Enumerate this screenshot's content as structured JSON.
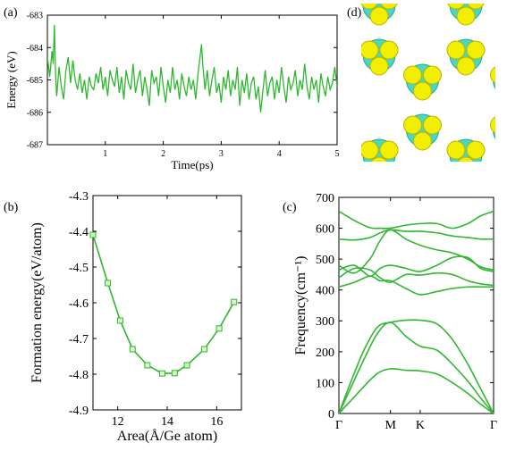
{
  "colors": {
    "line": "#2fb82f",
    "marker_fill": "#d9f7c5",
    "axis": "#000000",
    "iso_yellow": "#f2ee00",
    "iso_cyan": "#49d8c6"
  },
  "panel_labels": {
    "a": "(a)",
    "b": "(b)",
    "c": "(c)",
    "d": "(d)"
  },
  "chart_data": [
    {
      "id": "a",
      "type": "line",
      "xlabel": "Time(ps)",
      "ylabel": "Energy (eV)",
      "xlim": [
        0,
        5
      ],
      "ylim": [
        -687,
        -683
      ],
      "xticks": [
        1,
        2,
        3,
        4,
        5
      ],
      "yticks": [
        -683,
        -684,
        -685,
        -686,
        -687
      ],
      "grid": false,
      "series": [
        {
          "x": [
            0.0,
            0.04,
            0.08,
            0.1,
            0.12,
            0.14,
            0.16,
            0.2,
            0.24,
            0.28,
            0.32,
            0.36,
            0.4,
            0.44,
            0.48,
            0.52,
            0.56,
            0.6,
            0.64,
            0.68,
            0.72,
            0.76,
            0.8,
            0.84,
            0.88,
            0.92,
            0.96,
            1.0,
            1.04,
            1.08,
            1.12,
            1.16,
            1.2,
            1.24,
            1.28,
            1.32,
            1.36,
            1.4,
            1.44,
            1.48,
            1.52,
            1.56,
            1.6,
            1.64,
            1.68,
            1.72,
            1.76,
            1.8,
            1.84,
            1.88,
            1.92,
            1.96,
            2.0,
            2.04,
            2.08,
            2.12,
            2.16,
            2.2,
            2.24,
            2.28,
            2.32,
            2.36,
            2.4,
            2.44,
            2.48,
            2.52,
            2.56,
            2.6,
            2.64,
            2.66,
            2.68,
            2.72,
            2.76,
            2.8,
            2.84,
            2.88,
            2.92,
            2.96,
            3.0,
            3.04,
            3.08,
            3.12,
            3.16,
            3.2,
            3.24,
            3.28,
            3.32,
            3.36,
            3.4,
            3.44,
            3.48,
            3.52,
            3.56,
            3.6,
            3.64,
            3.68,
            3.72,
            3.76,
            3.8,
            3.84,
            3.88,
            3.92,
            3.96,
            4.0,
            4.04,
            4.08,
            4.12,
            4.16,
            4.2,
            4.24,
            4.28,
            4.32,
            4.36,
            4.4,
            4.44,
            4.48,
            4.52,
            4.56,
            4.6,
            4.64,
            4.68,
            4.72,
            4.76,
            4.8,
            4.84,
            4.88,
            4.92,
            4.96,
            5.0
          ],
          "y": [
            -684.3,
            -684.9,
            -684.1,
            -684.5,
            -683.3,
            -684.8,
            -685.5,
            -684.6,
            -685.2,
            -685.6,
            -684.7,
            -684.3,
            -685.1,
            -684.4,
            -685.0,
            -685.3,
            -684.8,
            -685.4,
            -685.0,
            -685.6,
            -684.9,
            -685.2,
            -685.3,
            -684.8,
            -685.1,
            -684.6,
            -685.3,
            -684.9,
            -685.5,
            -684.7,
            -685.0,
            -685.2,
            -684.6,
            -685.4,
            -684.9,
            -685.6,
            -684.7,
            -685.1,
            -685.3,
            -684.5,
            -685.4,
            -685.0,
            -684.7,
            -685.5,
            -684.9,
            -685.3,
            -685.8,
            -684.7,
            -685.1,
            -684.9,
            -685.5,
            -684.6,
            -685.2,
            -685.7,
            -685.0,
            -685.4,
            -684.6,
            -685.3,
            -685.0,
            -685.6,
            -684.8,
            -685.2,
            -685.5,
            -684.9,
            -685.3,
            -685.0,
            -685.6,
            -684.8,
            -684.2,
            -683.9,
            -684.5,
            -685.3,
            -684.7,
            -685.5,
            -685.0,
            -684.6,
            -685.4,
            -685.1,
            -685.7,
            -684.9,
            -685.3,
            -684.7,
            -685.5,
            -685.0,
            -685.3,
            -684.6,
            -685.8,
            -685.0,
            -685.4,
            -684.8,
            -685.6,
            -685.1,
            -684.9,
            -685.6,
            -685.2,
            -686.0,
            -685.3,
            -684.7,
            -685.5,
            -685.1,
            -684.9,
            -685.6,
            -685.0,
            -685.4,
            -684.6,
            -685.2,
            -685.7,
            -684.9,
            -685.3,
            -685.1,
            -684.7,
            -685.5,
            -685.0,
            -685.3,
            -684.5,
            -685.2,
            -685.6,
            -684.9,
            -685.3,
            -685.0,
            -685.7,
            -684.8,
            -685.2,
            -685.5,
            -684.9,
            -685.3,
            -685.1,
            -684.6,
            -685.2
          ]
        }
      ]
    },
    {
      "id": "b",
      "type": "line",
      "xlabel": "Area(Å/Ge atom)",
      "ylabel": "Formation energy(eV/atom)",
      "xlim": [
        11.0,
        17.0
      ],
      "ylim": [
        -4.9,
        -4.3
      ],
      "xticks": [
        12,
        14,
        16
      ],
      "yticks": [
        -4.3,
        -4.4,
        -4.5,
        -4.6,
        -4.7,
        -4.8,
        -4.9
      ],
      "grid": false,
      "series": [
        {
          "x": [
            11.0,
            11.6,
            12.1,
            12.6,
            13.2,
            13.8,
            14.3,
            14.8,
            15.5,
            16.1,
            16.7
          ],
          "y": [
            -4.41,
            -4.545,
            -4.65,
            -4.73,
            -4.775,
            -4.798,
            -4.797,
            -4.775,
            -4.73,
            -4.672,
            -4.598
          ]
        }
      ]
    },
    {
      "id": "c",
      "type": "line",
      "xlabel": "",
      "ylabel": "Frequency(cm⁻¹)",
      "xlim": [
        0,
        3
      ],
      "ylim": [
        0,
        700
      ],
      "xtick_positions": [
        0,
        1,
        1.577,
        3
      ],
      "xtick_labels": [
        "Γ",
        "M",
        "K",
        "Γ"
      ],
      "yticks": [
        0,
        100,
        200,
        300,
        400,
        500,
        600,
        700
      ],
      "grid": false,
      "series": [
        {
          "x": [
            0,
            0.25,
            0.5,
            0.75,
            1.0,
            1.3,
            1.577,
            1.9,
            2.2,
            2.5,
            2.75,
            3.0
          ],
          "y": [
            0,
            45,
            90,
            130,
            145,
            140,
            138,
            128,
            100,
            65,
            30,
            0
          ]
        },
        {
          "x": [
            0,
            0.25,
            0.5,
            0.75,
            1.0,
            1.3,
            1.577,
            1.9,
            2.2,
            2.5,
            2.75,
            3.0
          ],
          "y": [
            0,
            90,
            180,
            260,
            295,
            250,
            218,
            205,
            160,
            105,
            50,
            0
          ]
        },
        {
          "x": [
            0,
            0.25,
            0.5,
            0.75,
            1.0,
            1.3,
            1.577,
            1.9,
            2.2,
            2.5,
            2.75,
            3.0
          ],
          "y": [
            0,
            110,
            210,
            280,
            295,
            302,
            302,
            290,
            240,
            160,
            80,
            0
          ]
        },
        {
          "x": [
            0,
            0.3,
            0.6,
            0.8,
            1.0,
            1.3,
            1.577,
            1.9,
            2.2,
            2.5,
            2.75,
            3.0
          ],
          "y": [
            410,
            425,
            445,
            430,
            430,
            405,
            385,
            395,
            405,
            410,
            410,
            410
          ]
        },
        {
          "x": [
            0,
            0.3,
            0.6,
            0.8,
            1.0,
            1.3,
            1.577,
            1.9,
            2.2,
            2.5,
            2.75,
            3.0
          ],
          "y": [
            440,
            470,
            465,
            440,
            425,
            450,
            448,
            455,
            450,
            430,
            420,
            415
          ]
        },
        {
          "x": [
            0,
            0.3,
            0.6,
            0.8,
            1.0,
            1.3,
            1.577,
            1.9,
            2.2,
            2.5,
            2.75,
            3.0
          ],
          "y": [
            465,
            480,
            445,
            470,
            480,
            470,
            460,
            480,
            505,
            505,
            470,
            460
          ]
        },
        {
          "x": [
            0,
            0.3,
            0.6,
            0.8,
            1.0,
            1.3,
            1.577,
            1.9,
            2.2,
            2.5,
            2.75,
            3.0
          ],
          "y": [
            480,
            455,
            500,
            560,
            595,
            565,
            545,
            530,
            520,
            500,
            475,
            465
          ]
        },
        {
          "x": [
            0,
            0.3,
            0.6,
            0.8,
            1.0,
            1.3,
            1.577,
            1.9,
            2.2,
            2.5,
            2.75,
            3.0
          ],
          "y": [
            565,
            562,
            570,
            585,
            595,
            590,
            590,
            585,
            575,
            570,
            565,
            565
          ]
        },
        {
          "x": [
            0,
            0.3,
            0.6,
            0.8,
            1.0,
            1.3,
            1.577,
            1.9,
            2.2,
            2.5,
            2.75,
            3.0
          ],
          "y": [
            655,
            625,
            602,
            600,
            600,
            610,
            615,
            615,
            600,
            615,
            640,
            655
          ]
        }
      ]
    }
  ]
}
